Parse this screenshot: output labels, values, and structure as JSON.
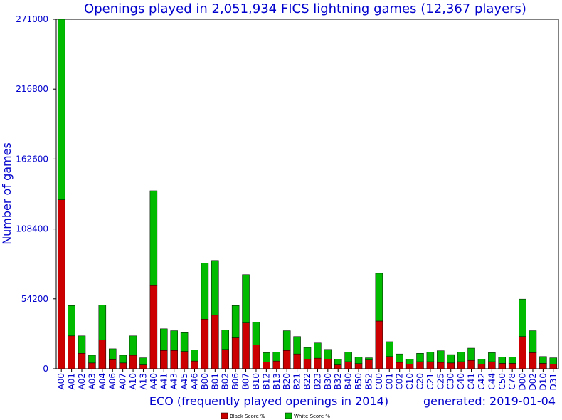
{
  "chart_data": {
    "type": "bar",
    "stacked": true,
    "title": "Openings played in 2,051,934 FICS lightning games (12,367 players)",
    "xlabel": "ECO (frequently played openings in 2014)",
    "ylabel": "Number of games",
    "note": "generated: 2019-01-04",
    "ylim": [
      0,
      271000
    ],
    "yticks": [
      0,
      54200,
      108400,
      162600,
      216800,
      271000
    ],
    "grid": false,
    "legend_position": "bottom",
    "colors": {
      "black": "#cc0000",
      "white": "#00bb00"
    },
    "categories": [
      "A00",
      "A01",
      "A02",
      "A03",
      "A04",
      "A06",
      "A07",
      "A10",
      "A13",
      "A40",
      "A41",
      "A43",
      "A45",
      "A46",
      "B00",
      "B01",
      "B02",
      "B06",
      "B07",
      "B10",
      "B12",
      "B13",
      "B20",
      "B21",
      "B22",
      "B23",
      "B30",
      "B32",
      "B40",
      "B50",
      "B52",
      "C00",
      "C01",
      "C02",
      "C10",
      "C20",
      "C21",
      "C25",
      "C30",
      "C40",
      "C41",
      "C42",
      "C44",
      "C50",
      "C78",
      "D00",
      "D02",
      "D10",
      "D31"
    ],
    "series": [
      {
        "name": "Black Score %",
        "values": [
          131000,
          25500,
          12000,
          4500,
          22500,
          7000,
          4500,
          10500,
          3000,
          64500,
          14200,
          14200,
          13500,
          6000,
          38500,
          41500,
          15000,
          24000,
          35500,
          18500,
          5200,
          6000,
          14200,
          11500,
          7300,
          8200,
          7500,
          3000,
          5500,
          4000,
          6800,
          37000,
          9500,
          5000,
          3500,
          5500,
          5500,
          5000,
          4500,
          5500,
          6500,
          3500,
          5500,
          4200,
          4200,
          25000,
          12500,
          4200,
          3500
        ]
      },
      {
        "name": "White Score %",
        "values": [
          140000,
          23500,
          13500,
          6000,
          27000,
          8500,
          6000,
          15000,
          5500,
          73500,
          16800,
          15300,
          14500,
          8500,
          43500,
          42500,
          15000,
          25000,
          37500,
          17500,
          7300,
          7000,
          15300,
          13500,
          9200,
          11800,
          7500,
          4500,
          7500,
          5000,
          1700,
          37000,
          11500,
          6500,
          4000,
          6500,
          7500,
          9000,
          6500,
          7500,
          9500,
          4000,
          7000,
          4800,
          4800,
          29000,
          17000,
          5300,
          5000
        ]
      }
    ]
  }
}
